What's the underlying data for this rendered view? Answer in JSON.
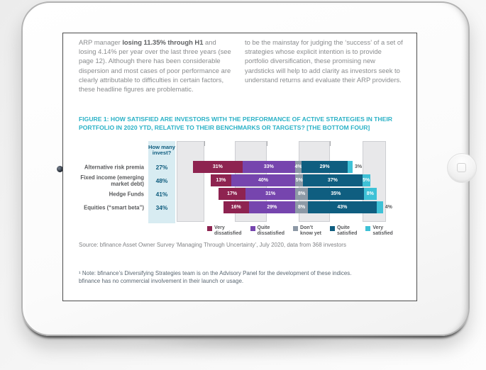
{
  "page": {
    "intro_left_parts": [
      {
        "text": "ARP manager ",
        "bold": false
      },
      {
        "text": "losing 11.35% through H1",
        "bold": true
      },
      {
        "text": " and losing 4.14% per year over the last three years (see page 12). Although there has been considerable dispersion and most cases of poor performance are clearly attributable to difficulties in certain factors, these headline figures are problematic.",
        "bold": false
      }
    ],
    "intro_right": "to be the mainstay for judging the ‘success’ of a set of strategies whose explicit intention is to provide portfolio diversification, these promising new yardsticks will help to add clarity as investors seek to understand returns and evaluate their ARP providers.",
    "figure_title_line1": "FIGURE 1: HOW SATISFIED ARE INVESTORS WITH THE PERFORMANCE OF ACTIVE STRATEGIES IN THEIR",
    "figure_title_line2": "PORTFOLIO IN 2020 YTD, RELATIVE TO THEIR BENCHMARKS OR TARGETS? [THE BOTTOM FOUR]",
    "source": "Source: bfinance Asset Owner Survey ‘Managing Through Uncertainty’, July 2020, data from 368 investors",
    "footnote_line1": "¹ Note: bfinance’s Diversifying Strategies team is on the Advisory Panel for the development of these indices.",
    "footnote_line2": "bfinance has no commercial involvement in their launch or usage."
  },
  "chart_data": {
    "type": "bar",
    "variant": "horizontal diverging 100% stacked bars, rows aligned at the dissatisfied/neutral boundary",
    "title": "FIGURE 1: HOW SATISFIED ARE INVESTORS WITH THE PERFORMANCE OF ACTIVE STRATEGIES IN THEIR PORTFOLIO IN 2020 YTD, RELATIVE TO THEIR BENCHMARKS OR TARGETS? [THE BOTTOM FOUR]",
    "unit": "%",
    "categories": [
      "Alternative risk premia",
      "Fixed income (emerging market debt)",
      "Hedge Funds",
      "Equities (“smart beta”)"
    ],
    "aside_column": {
      "header": "How many invest?",
      "values": [
        "27%",
        "48%",
        "41%",
        "34%"
      ]
    },
    "series": [
      {
        "name": "Very dissatisfied",
        "legend_lines": [
          "Very",
          "dissatisfied"
        ],
        "color": "#8e2350",
        "values": [
          31,
          13,
          17,
          16
        ]
      },
      {
        "name": "Quite dissatisfied",
        "legend_lines": [
          "Quite",
          "dissatisfied"
        ],
        "color": "#7645ae",
        "values": [
          33,
          40,
          31,
          29
        ]
      },
      {
        "name": "Don’t know yet",
        "legend_lines": [
          "Don’t",
          "know yet"
        ],
        "color": "#8d99a6",
        "values": [
          4,
          5,
          8,
          8
        ]
      },
      {
        "name": "Quite satisfied",
        "legend_lines": [
          "Quite",
          "satisfied"
        ],
        "color": "#0f5e80",
        "values": [
          29,
          37,
          35,
          43
        ]
      },
      {
        "name": "Very satisfied",
        "legend_lines": [
          "Very",
          "satisfied"
        ],
        "color": "#3ec1d6",
        "values": [
          3,
          5,
          8,
          4
        ]
      }
    ],
    "value_labels": "percent labels inside segments in white; small end segments (3%, 4%) labelled outside in grey",
    "legend_position": "bottom",
    "grid": "light grey vertical bands behind bars",
    "colors": {
      "title_teal": "#29b1c6",
      "aside_bg": "#d8ecf2",
      "aside_text": "#0e5c7e",
      "category_text": "#58595b",
      "stripe_fill": "#e8e8ea",
      "stripe_border": "#cdced2"
    }
  }
}
